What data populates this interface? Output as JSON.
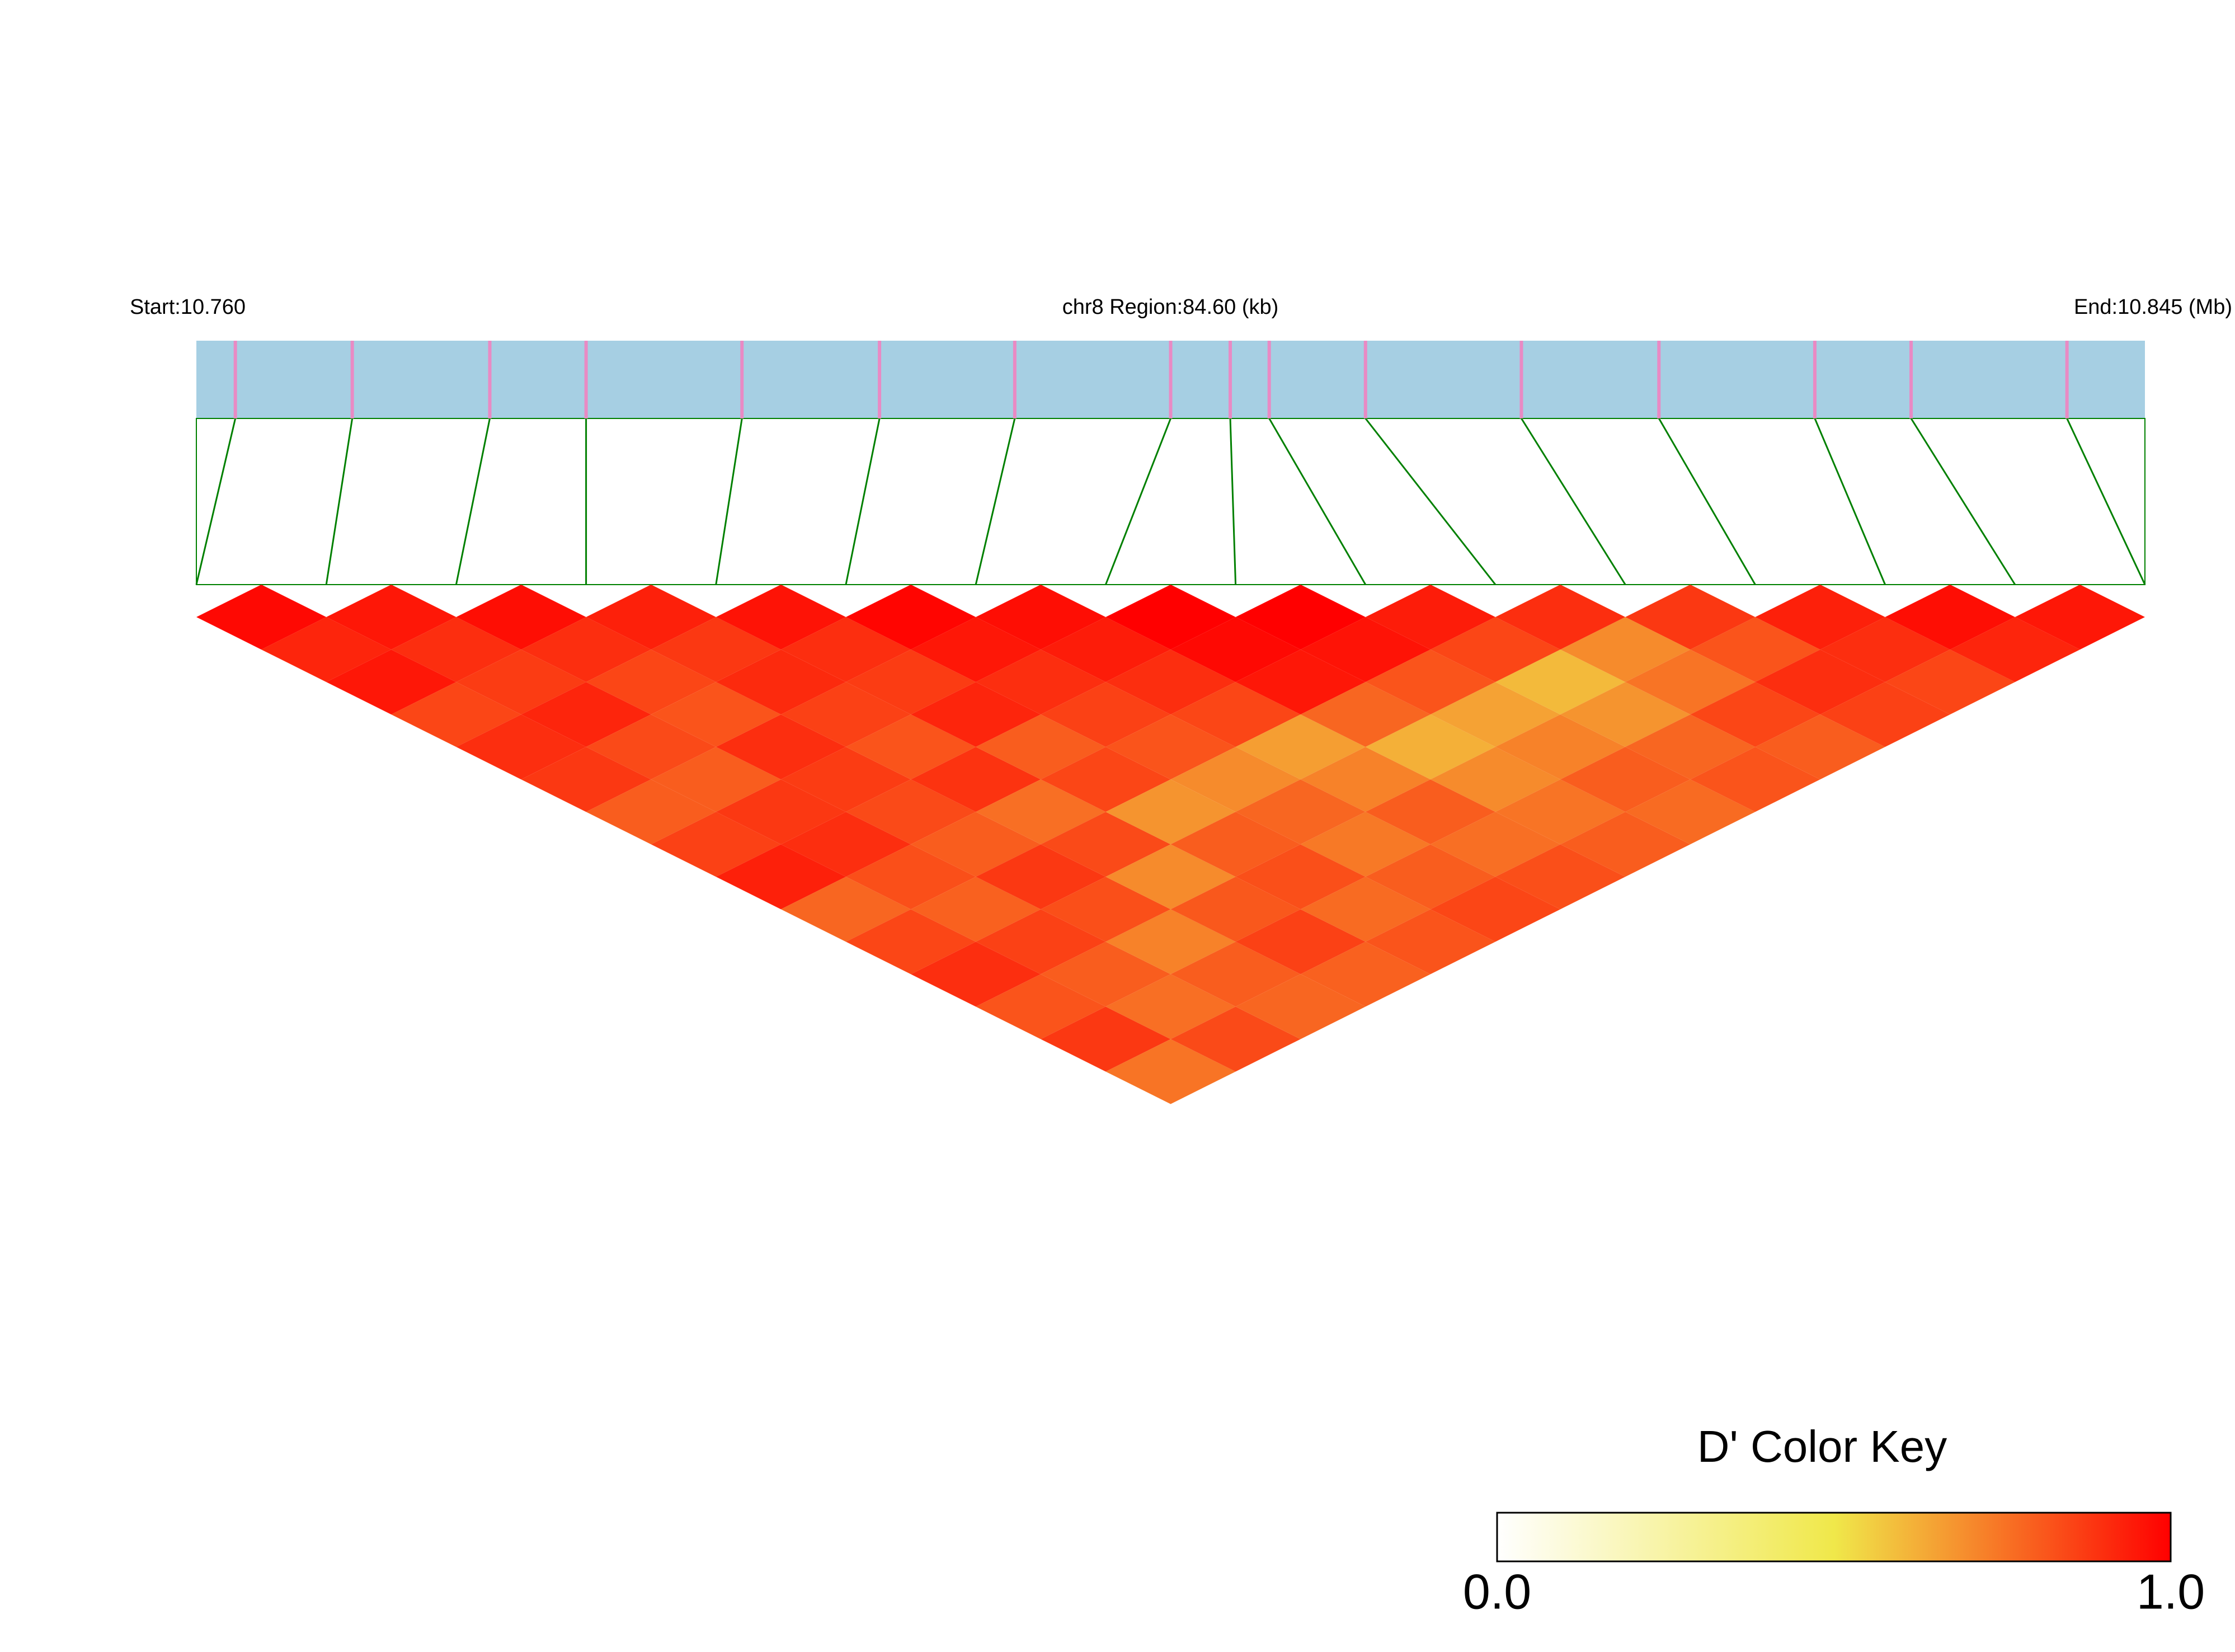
{
  "chart_data": {
    "type": "ld_heatmap",
    "start_label": "Start:10.760",
    "region_label": "chr8 Region:84.60 (kb)",
    "end_label": "End:10.845 (Mb)",
    "key_title": "D' Color Key",
    "xlim": [
      10.76,
      10.845
    ],
    "snp_positions": [
      10.7617,
      10.7668,
      10.7728,
      10.777,
      10.7838,
      10.7898,
      10.7957,
      10.8025,
      10.8051,
      10.8068,
      10.811,
      10.8178,
      10.8238,
      10.8306,
      10.8348,
      10.8416
    ],
    "dprime": [
      [
        0.98,
        0.92,
        0.95,
        0.85,
        0.9,
        0.88,
        0.8,
        0.86,
        0.93,
        0.78,
        0.85,
        0.9,
        0.82,
        0.88,
        0.75
      ],
      [
        0.95,
        0.9,
        0.87,
        0.92,
        0.84,
        0.8,
        0.88,
        0.9,
        0.83,
        0.79,
        0.86,
        0.8,
        0.76,
        0.84
      ],
      [
        0.97,
        0.9,
        0.85,
        0.82,
        0.9,
        0.87,
        0.84,
        0.8,
        0.88,
        0.83,
        0.72,
        0.8,
        0.78
      ],
      [
        0.93,
        0.88,
        0.91,
        0.86,
        0.82,
        0.89,
        0.76,
        0.84,
        0.7,
        0.81,
        0.86,
        0.79
      ],
      [
        0.96,
        0.9,
        0.87,
        0.92,
        0.8,
        0.85,
        0.68,
        0.8,
        0.83,
        0.77,
        0.82
      ],
      [
        0.99,
        0.95,
        0.9,
        0.86,
        0.82,
        0.7,
        0.78,
        0.74,
        0.8,
        0.85
      ],
      [
        0.97,
        0.94,
        0.9,
        0.85,
        0.66,
        0.72,
        0.8,
        0.76,
        0.83
      ],
      [
        1,
        0.98,
        0.95,
        0.78,
        0.62,
        0.7,
        0.75,
        0.8
      ],
      [
        1,
        0.96,
        0.82,
        0.65,
        0.72,
        0.8,
        0.77
      ],
      [
        0.94,
        0.85,
        0.6,
        0.68,
        0.78,
        0.82
      ],
      [
        0.9,
        0.7,
        0.75,
        0.85,
        0.8
      ],
      [
        0.88,
        0.82,
        0.9,
        0.86
      ],
      [
        0.93,
        0.9,
        0.85
      ],
      [
        0.97,
        0.92
      ],
      [
        0.95
      ]
    ],
    "key_ticks": [
      {
        "value": 0,
        "label": "0.0"
      },
      {
        "value": 1,
        "label": "1.0"
      }
    ],
    "colorscale": [
      "#ffffff",
      "#f0e84a",
      "#ff0000"
    ],
    "snp_bar_color": "#a6cfe3",
    "snp_tick_color": "#e98ac4",
    "connector_color": "#008000"
  }
}
